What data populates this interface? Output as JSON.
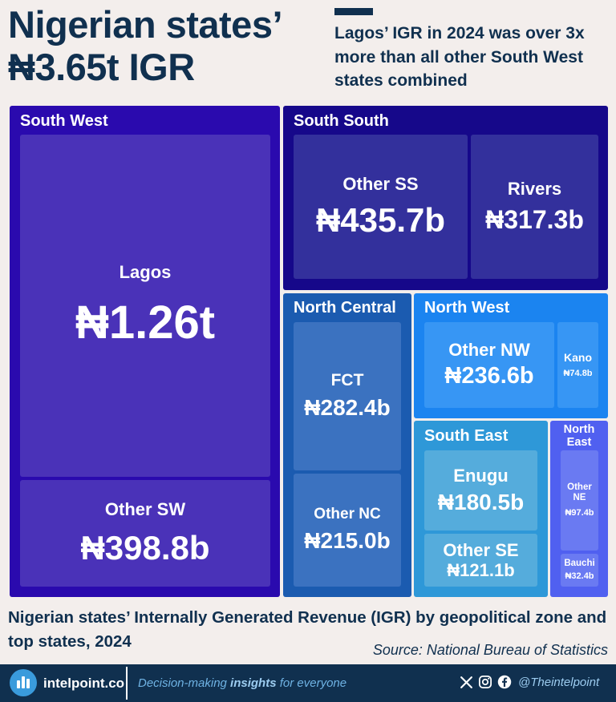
{
  "header": {
    "title_line1": "Nigerian states’",
    "title_line2": "₦3.65t IGR",
    "subtitle": "Lagos’ IGR in 2024 was over 3x more than all other South West states combined"
  },
  "chart_data": {
    "type": "treemap",
    "unit": "₦ billion",
    "zones": [
      {
        "name": "South West",
        "color": "#2a0aae",
        "states": [
          {
            "name": "Lagos",
            "value": 1260,
            "label": "₦1.26t",
            "color": "#4a32b8"
          },
          {
            "name": "Other SW",
            "value": 398.8,
            "label": "₦398.8b",
            "color": "#4a32b8"
          }
        ]
      },
      {
        "name": "South South",
        "color": "#16088a",
        "states": [
          {
            "name": "Other SS",
            "value": 435.7,
            "label": "₦435.7b",
            "color": "#33309c"
          },
          {
            "name": "Rivers",
            "value": 317.3,
            "label": "₦317.3b",
            "color": "#33309c"
          }
        ]
      },
      {
        "name": "North Central",
        "color": "#1b5bb0",
        "states": [
          {
            "name": "FCT",
            "value": 282.4,
            "label": "₦282.4b",
            "color": "#3b72c0"
          },
          {
            "name": "Other NC",
            "value": 215.0,
            "label": "₦215.0b",
            "color": "#3b72c0"
          }
        ]
      },
      {
        "name": "North West",
        "color": "#1b84f0",
        "states": [
          {
            "name": "Other NW",
            "value": 236.6,
            "label": "₦236.6b",
            "color": "#3796f4"
          },
          {
            "name": "Kano",
            "value": 74.8,
            "label": "₦74.8b",
            "color": "#3796f4"
          }
        ]
      },
      {
        "name": "South East",
        "color": "#2e98d8",
        "states": [
          {
            "name": "Enugu",
            "value": 180.5,
            "label": "₦180.5b",
            "color": "#55acdc"
          },
          {
            "name": "Other SE",
            "value": 121.1,
            "label": "₦121.1b",
            "color": "#55acdc"
          }
        ]
      },
      {
        "name": "North East",
        "color": "#5060f0",
        "states": [
          {
            "name": "Other NE",
            "value": 97.4,
            "label": "₦97.4b",
            "color": "#6a7af2"
          },
          {
            "name": "Bauchi",
            "value": 32.4,
            "label": "₦32.4b",
            "color": "#6a7af2"
          }
        ]
      }
    ]
  },
  "caption": "Nigerian states’ Internally Generated Revenue (IGR) by geopolitical zone and top states, 2024",
  "source": "Source: National Bureau of Statistics",
  "footer": {
    "brand": "intelpoint.co",
    "tagline_pre": "Decision-making ",
    "tagline_bold": "insights",
    "tagline_post": " for everyone",
    "handle": "@Theintelpoint",
    "social_icons": [
      "x-icon",
      "instagram-icon",
      "facebook-icon"
    ]
  }
}
